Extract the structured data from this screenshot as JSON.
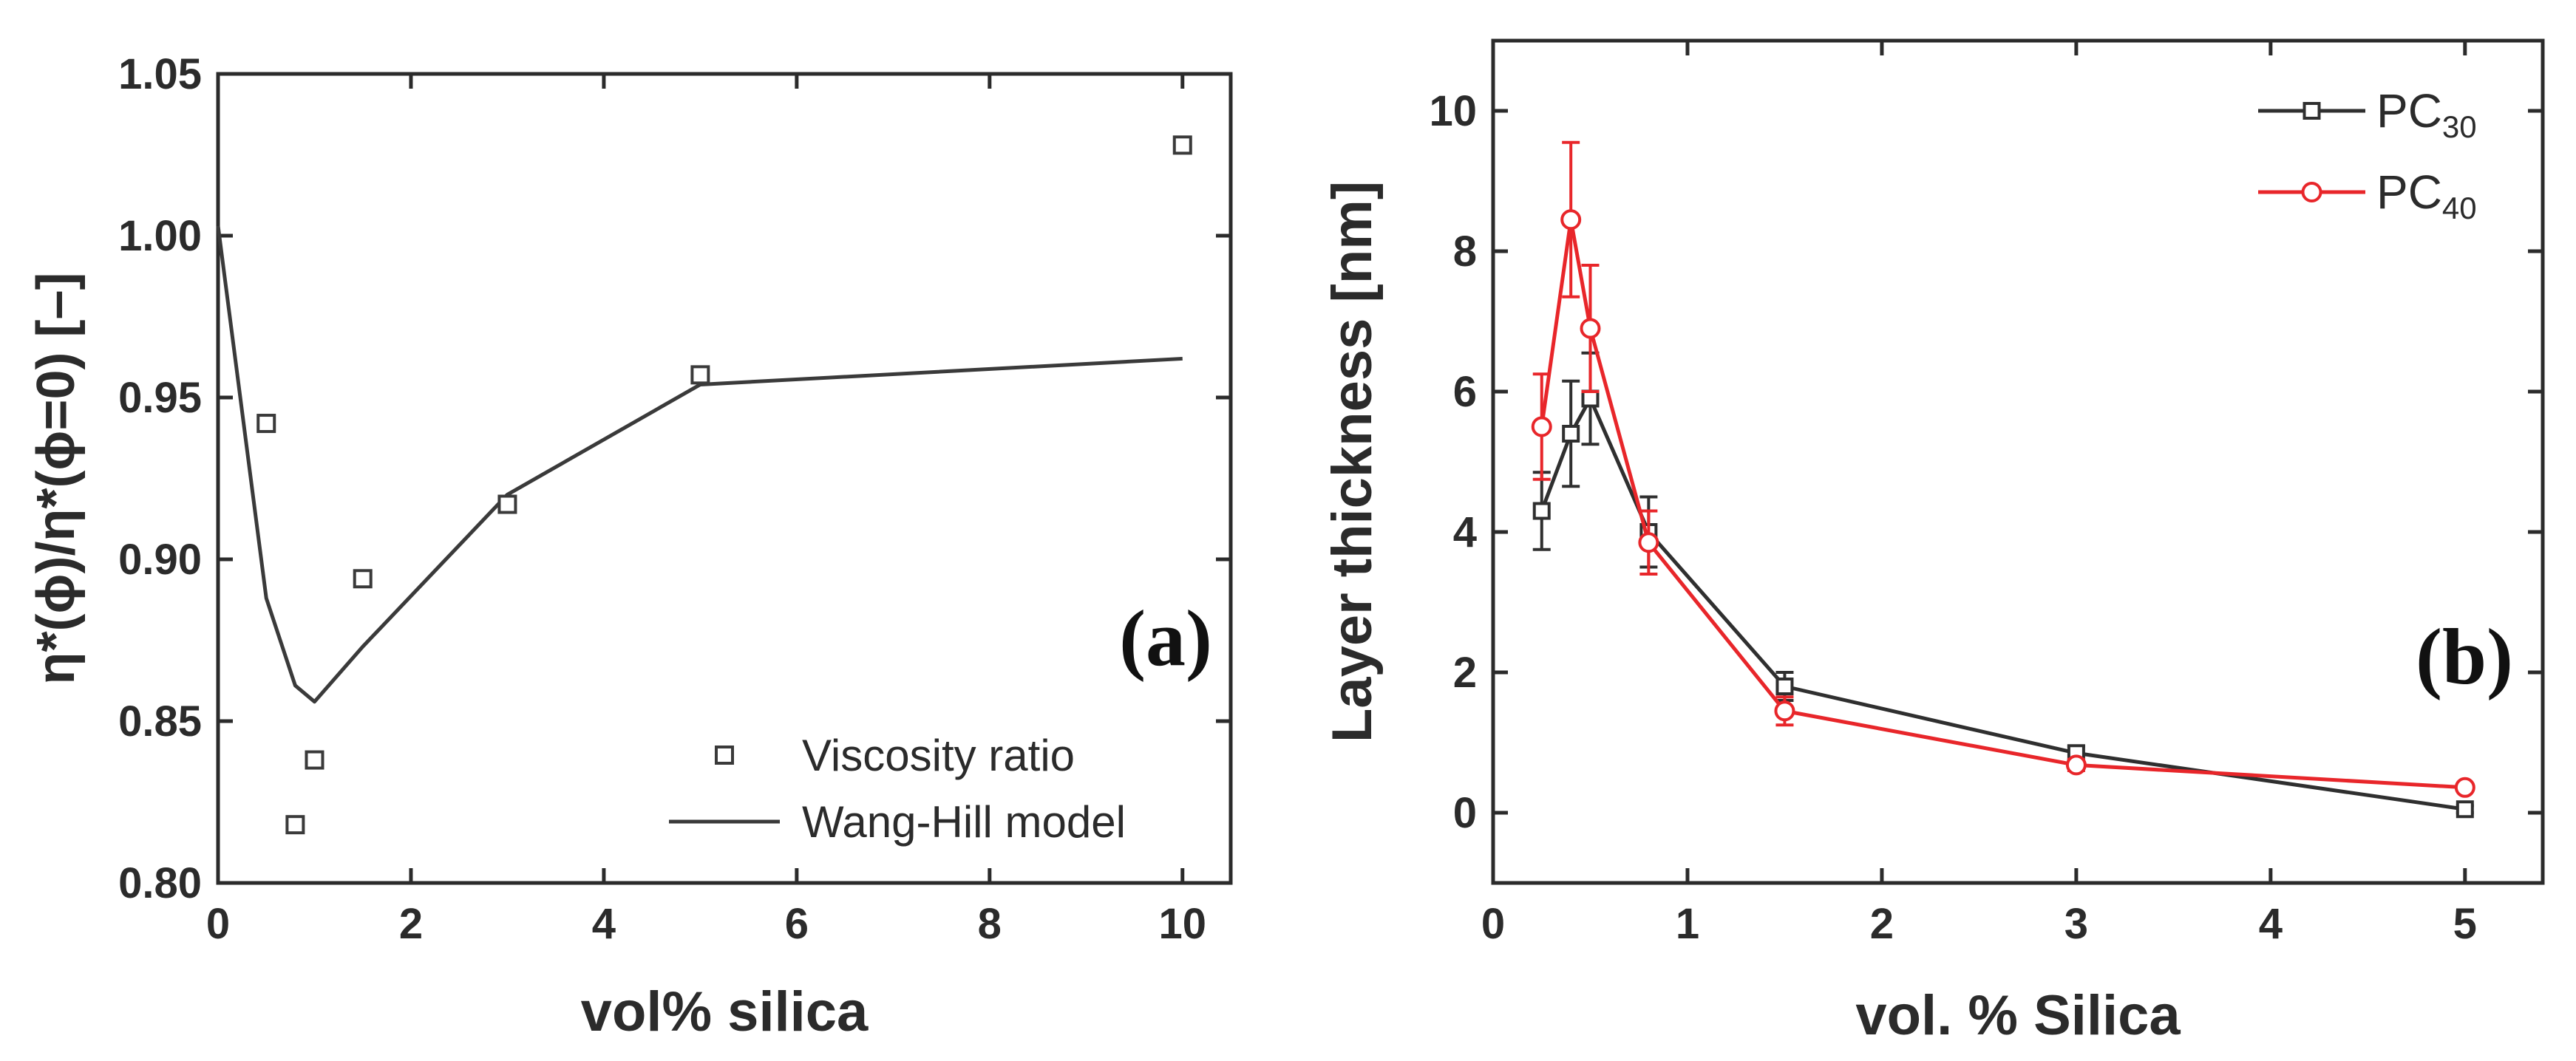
{
  "chart_data": [
    {
      "type": "scatter",
      "panel_label": "(a)",
      "xlabel": "vol% silica",
      "ylabel": "η*(ϕ)/η*(ϕ=0) [–]",
      "xlim": [
        0,
        10.5
      ],
      "ylim": [
        0.8,
        1.05
      ],
      "xticks": [
        0,
        2,
        4,
        6,
        8,
        10
      ],
      "yticks": [
        0.8,
        0.85,
        0.9,
        0.95,
        1.0,
        1.05
      ],
      "ytick_labels": [
        "0.80",
        "0.85",
        "0.90",
        "0.95",
        "1.00",
        "1.05"
      ],
      "legend_position": "bottom-right",
      "series": [
        {
          "name": "Viscosity ratio",
          "kind": "markers",
          "marker": "open-square",
          "color": "#3a3a3a",
          "x": [
            0.5,
            0.8,
            1.0,
            1.5,
            3.0,
            5.0,
            10.0
          ],
          "y": [
            0.942,
            0.818,
            0.838,
            0.894,
            0.917,
            0.957,
            1.028
          ]
        },
        {
          "name": "Wang-Hill model",
          "kind": "line",
          "color": "#3a3a3a",
          "x": [
            0,
            0.5,
            0.8,
            1.0,
            1.5,
            3.0,
            5.0,
            10.0
          ],
          "y": [
            1.003,
            0.888,
            0.861,
            0.856,
            0.873,
            0.92,
            0.954,
            0.962
          ]
        }
      ]
    },
    {
      "type": "line",
      "panel_label": "(b)",
      "xlabel": "vol. % Silica",
      "ylabel": "Layer thickness [nm]",
      "xlim": [
        0,
        5.4
      ],
      "ylim": [
        -1,
        11
      ],
      "xticks": [
        0,
        1,
        2,
        3,
        4,
        5
      ],
      "yticks": [
        0,
        2,
        4,
        6,
        8,
        10
      ],
      "legend_position": "top-right",
      "series": [
        {
          "name": "PC",
          "subscript": "30",
          "marker": "open-square",
          "color": "#2f2f2f",
          "x": [
            0.25,
            0.4,
            0.5,
            0.8,
            1.5,
            3.0,
            5.0
          ],
          "y": [
            4.3,
            5.4,
            5.9,
            4.0,
            1.8,
            0.85,
            0.05
          ],
          "err": [
            0.55,
            0.75,
            0.65,
            0.5,
            0.2,
            0.1,
            0.05
          ]
        },
        {
          "name": "PC",
          "subscript": "40",
          "marker": "open-circle",
          "color": "#e8262a",
          "x": [
            0.25,
            0.4,
            0.5,
            0.8,
            1.5,
            3.0,
            5.0
          ],
          "y": [
            5.5,
            8.45,
            6.9,
            3.85,
            1.45,
            0.68,
            0.36
          ],
          "err": [
            0.75,
            1.1,
            0.9,
            0.45,
            0.2,
            0.08,
            0.05
          ]
        }
      ]
    }
  ]
}
